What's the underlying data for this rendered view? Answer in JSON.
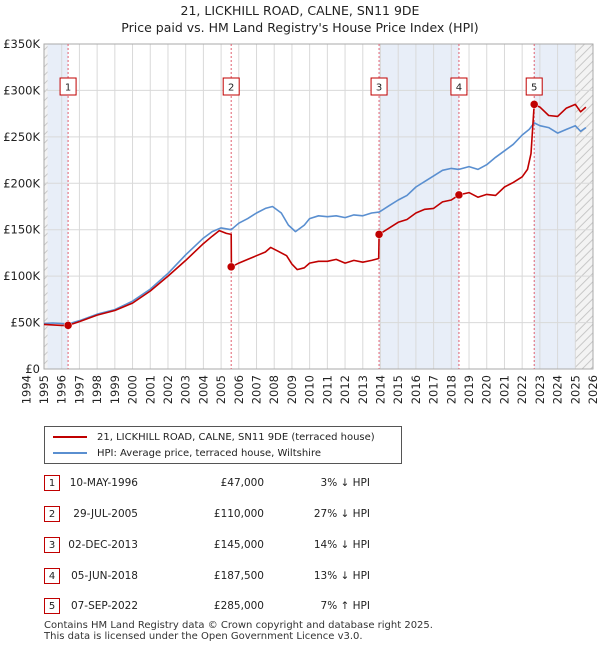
{
  "header": {
    "title_line1": "21, LICKHILL ROAD, CALNE, SN11 9DE",
    "title_line2": "Price paid vs. HM Land Registry's House Price Index (HPI)"
  },
  "chart_data": {
    "type": "line",
    "title": "21, LICKHILL ROAD, CALNE, SN11 9DE — Price paid vs. HM Land Registry's House Price Index (HPI)",
    "xlabel": "",
    "ylabel": "",
    "xlim": [
      1995.0,
      2026.0
    ],
    "ylim": [
      0,
      350000
    ],
    "x_ticks": [
      1994,
      1995,
      1996,
      1997,
      1998,
      1999,
      2000,
      2001,
      2002,
      2003,
      2004,
      2005,
      2006,
      2007,
      2008,
      2009,
      2010,
      2011,
      2012,
      2013,
      2014,
      2015,
      2016,
      2017,
      2018,
      2019,
      2020,
      2021,
      2022,
      2023,
      2024,
      2025,
      2026
    ],
    "y_ticks": [
      {
        "value": 0,
        "label": "£0"
      },
      {
        "value": 50000,
        "label": "£50K"
      },
      {
        "value": 100000,
        "label": "£100K"
      },
      {
        "value": 150000,
        "label": "£150K"
      },
      {
        "value": 200000,
        "label": "£200K"
      },
      {
        "value": 250000,
        "label": "£250K"
      },
      {
        "value": 300000,
        "label": "£300K"
      },
      {
        "value": 350000,
        "label": "£350K"
      }
    ],
    "grid": true,
    "colors": {
      "property": "#c00000",
      "hpi": "#5a8fd0",
      "band": "#e8eef8",
      "sale_line": "#e06070"
    },
    "series": [
      {
        "name": "21, LICKHILL ROAD, CALNE, SN11 9DE (terraced house)",
        "color": "#c00000",
        "points": [
          [
            1995.0,
            48000
          ],
          [
            1995.5,
            47500
          ],
          [
            1996.0,
            47000
          ],
          [
            1996.36,
            47000
          ],
          [
            1997.0,
            51000
          ],
          [
            1998.0,
            58000
          ],
          [
            1999.0,
            63000
          ],
          [
            2000.0,
            71000
          ],
          [
            2001.0,
            84000
          ],
          [
            2002.0,
            100000
          ],
          [
            2003.0,
            117000
          ],
          [
            2004.0,
            135000
          ],
          [
            2004.5,
            143000
          ],
          [
            2004.9,
            149000
          ],
          [
            2005.3,
            146000
          ],
          [
            2005.57,
            145000
          ],
          [
            2005.58,
            110000
          ],
          [
            2006.0,
            114000
          ],
          [
            2006.5,
            118000
          ],
          [
            2007.0,
            122000
          ],
          [
            2007.5,
            126000
          ],
          [
            2007.8,
            131000
          ],
          [
            2008.2,
            127000
          ],
          [
            2008.7,
            122000
          ],
          [
            2009.0,
            113000
          ],
          [
            2009.3,
            107000
          ],
          [
            2009.7,
            109000
          ],
          [
            2010.0,
            114000
          ],
          [
            2010.5,
            116000
          ],
          [
            2011.0,
            116000
          ],
          [
            2011.5,
            118000
          ],
          [
            2012.0,
            114000
          ],
          [
            2012.5,
            117000
          ],
          [
            2013.0,
            115000
          ],
          [
            2013.5,
            117000
          ],
          [
            2013.9,
            119000
          ],
          [
            2013.92,
            145000
          ],
          [
            2014.5,
            152000
          ],
          [
            2015.0,
            158000
          ],
          [
            2015.5,
            161000
          ],
          [
            2016.0,
            168000
          ],
          [
            2016.5,
            172000
          ],
          [
            2017.0,
            173000
          ],
          [
            2017.5,
            180000
          ],
          [
            2018.0,
            182000
          ],
          [
            2018.43,
            187500
          ],
          [
            2019.0,
            190000
          ],
          [
            2019.5,
            185000
          ],
          [
            2020.0,
            188000
          ],
          [
            2020.5,
            187000
          ],
          [
            2021.0,
            196000
          ],
          [
            2021.5,
            201000
          ],
          [
            2022.0,
            207000
          ],
          [
            2022.3,
            215000
          ],
          [
            2022.5,
            232000
          ],
          [
            2022.68,
            285000
          ],
          [
            2023.0,
            282000
          ],
          [
            2023.5,
            273000
          ],
          [
            2024.0,
            272000
          ],
          [
            2024.5,
            281000
          ],
          [
            2025.0,
            285000
          ],
          [
            2025.3,
            277000
          ],
          [
            2025.6,
            282000
          ]
        ]
      },
      {
        "name": "HPI: Average price, terraced house, Wiltshire",
        "color": "#5a8fd0",
        "points": [
          [
            1995.0,
            49000
          ],
          [
            1995.5,
            49500
          ],
          [
            1996.0,
            49000
          ],
          [
            1996.36,
            48500
          ],
          [
            1997.0,
            52000
          ],
          [
            1998.0,
            59000
          ],
          [
            1999.0,
            64000
          ],
          [
            2000.0,
            73000
          ],
          [
            2001.0,
            86000
          ],
          [
            2002.0,
            103000
          ],
          [
            2003.0,
            123000
          ],
          [
            2004.0,
            141000
          ],
          [
            2004.5,
            148000
          ],
          [
            2005.0,
            152000
          ],
          [
            2005.57,
            150000
          ],
          [
            2006.0,
            157000
          ],
          [
            2006.5,
            162000
          ],
          [
            2007.0,
            168000
          ],
          [
            2007.5,
            173000
          ],
          [
            2007.9,
            175000
          ],
          [
            2008.4,
            168000
          ],
          [
            2008.8,
            155000
          ],
          [
            2009.2,
            148000
          ],
          [
            2009.7,
            155000
          ],
          [
            2010.0,
            162000
          ],
          [
            2010.5,
            165000
          ],
          [
            2011.0,
            164000
          ],
          [
            2011.5,
            165000
          ],
          [
            2012.0,
            163000
          ],
          [
            2012.5,
            166000
          ],
          [
            2013.0,
            165000
          ],
          [
            2013.5,
            168000
          ],
          [
            2013.92,
            169000
          ],
          [
            2014.5,
            176000
          ],
          [
            2015.0,
            182000
          ],
          [
            2015.5,
            187000
          ],
          [
            2016.0,
            196000
          ],
          [
            2016.5,
            202000
          ],
          [
            2017.0,
            208000
          ],
          [
            2017.5,
            214000
          ],
          [
            2018.0,
            216000
          ],
          [
            2018.43,
            215000
          ],
          [
            2019.0,
            218000
          ],
          [
            2019.5,
            215000
          ],
          [
            2020.0,
            220000
          ],
          [
            2020.5,
            228000
          ],
          [
            2021.0,
            235000
          ],
          [
            2021.5,
            242000
          ],
          [
            2022.0,
            252000
          ],
          [
            2022.4,
            258000
          ],
          [
            2022.68,
            265000
          ],
          [
            2023.0,
            262000
          ],
          [
            2023.5,
            260000
          ],
          [
            2024.0,
            254000
          ],
          [
            2024.5,
            258000
          ],
          [
            2025.0,
            262000
          ],
          [
            2025.3,
            256000
          ],
          [
            2025.6,
            260000
          ]
        ]
      }
    ],
    "sales": [
      {
        "id": "1",
        "x": 1996.36,
        "price": 47000
      },
      {
        "id": "2",
        "x": 2005.57,
        "price": 110000
      },
      {
        "id": "3",
        "x": 2013.92,
        "price": 145000
      },
      {
        "id": "4",
        "x": 2018.43,
        "price": 187500
      },
      {
        "id": "5",
        "x": 2022.68,
        "price": 285000
      }
    ],
    "shaded_bands": [
      [
        1995.0,
        1996.36
      ],
      [
        2013.92,
        2018.43
      ],
      [
        2022.68,
        2025.0
      ]
    ],
    "hatched_ranges": [
      [
        1995.0,
        1995.2
      ],
      [
        2025.0,
        2026.0
      ]
    ]
  },
  "legend": {
    "property_label": "21, LICKHILL ROAD, CALNE, SN11 9DE (terraced house)",
    "hpi_label": "HPI: Average price, terraced house, Wiltshire"
  },
  "transactions": [
    {
      "num": "1",
      "date": "10-MAY-1996",
      "price": "£47,000",
      "hpi": "3% ↓ HPI"
    },
    {
      "num": "2",
      "date": "29-JUL-2005",
      "price": "£110,000",
      "hpi": "27% ↓ HPI"
    },
    {
      "num": "3",
      "date": "02-DEC-2013",
      "price": "£145,000",
      "hpi": "14% ↓ HPI"
    },
    {
      "num": "4",
      "date": "05-JUN-2018",
      "price": "£187,500",
      "hpi": "13% ↓ HPI"
    },
    {
      "num": "5",
      "date": "07-SEP-2022",
      "price": "£285,000",
      "hpi": "7% ↑ HPI"
    }
  ],
  "footer": {
    "line1": "Contains HM Land Registry data © Crown copyright and database right 2025.",
    "line2": "This data is licensed under the Open Government Licence v3.0."
  }
}
